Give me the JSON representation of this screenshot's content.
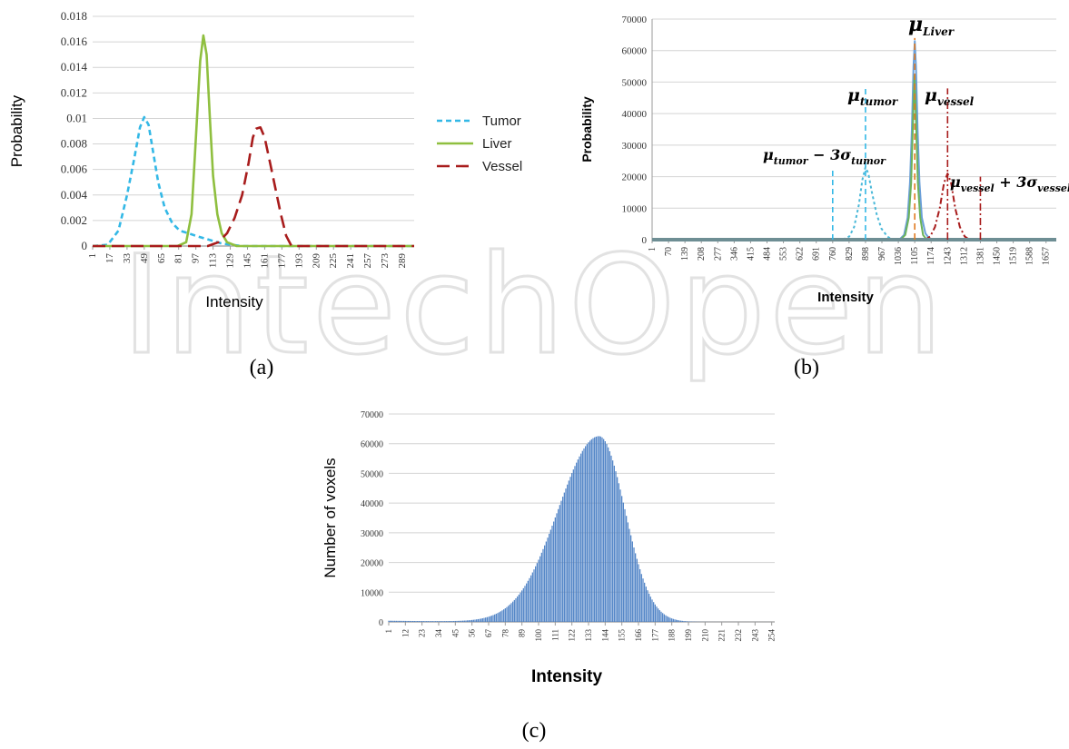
{
  "watermark": {
    "text": "IntechOpen",
    "color": "#e2e2e2"
  },
  "panel_labels": [
    "(a)",
    "(b)",
    "(c)"
  ],
  "chart_data": [
    {
      "id": "a",
      "type": "line",
      "title": "",
      "xlabel": "Intensity",
      "ylabel": "Probability",
      "xlim": [
        1,
        300
      ],
      "ylim": [
        0,
        0.018
      ],
      "y_ticks": [
        "0",
        "0.002",
        "0.004",
        "0.006",
        "0.008",
        "0.01",
        "0.012",
        "0.014",
        "0.016",
        "0.018"
      ],
      "x_ticks": [
        "1",
        "17",
        "33",
        "49",
        "65",
        "81",
        "97",
        "113",
        "129",
        "145",
        "161",
        "177",
        "193",
        "209",
        "225",
        "241",
        "257",
        "273",
        "289"
      ],
      "grid": "horizontal",
      "legend": "right",
      "series": [
        {
          "name": "Tumor",
          "color": "#33b8e6",
          "dash": "6,4",
          "x": [
            1,
            15,
            25,
            33,
            40,
            45,
            49,
            53,
            57,
            62,
            68,
            75,
            82,
            90,
            97,
            105,
            113,
            121,
            130,
            140,
            160,
            300
          ],
          "y": [
            0,
            0.0001,
            0.0012,
            0.004,
            0.007,
            0.0093,
            0.0101,
            0.0095,
            0.0075,
            0.005,
            0.003,
            0.0018,
            0.0012,
            0.001,
            0.0008,
            0.0006,
            0.0004,
            0.0002,
            0.0001,
            0,
            0,
            0
          ]
        },
        {
          "name": "Liver",
          "color": "#8fbf3f",
          "dash": "",
          "x": [
            1,
            80,
            88,
            93,
            97,
            101,
            104,
            107,
            110,
            113,
            117,
            121,
            126,
            135,
            300
          ],
          "y": [
            0,
            0,
            0.0003,
            0.0025,
            0.0085,
            0.0145,
            0.0165,
            0.015,
            0.01,
            0.0055,
            0.0025,
            0.001,
            0.0003,
            0,
            0
          ]
        },
        {
          "name": "Vessel",
          "color": "#a81c1c",
          "dash": "14,7",
          "x": [
            1,
            108,
            118,
            126,
            133,
            140,
            146,
            150,
            153,
            157,
            161,
            166,
            171,
            176,
            181,
            186,
            300
          ],
          "y": [
            0,
            0,
            0.0003,
            0.001,
            0.0022,
            0.004,
            0.0065,
            0.0085,
            0.0092,
            0.0093,
            0.0085,
            0.0065,
            0.0045,
            0.0025,
            0.0008,
            0,
            0
          ]
        }
      ]
    },
    {
      "id": "b",
      "type": "line",
      "title": "",
      "xlabel": "Intensity",
      "ylabel": "Probability",
      "xlim": [
        1,
        1700
      ],
      "ylim": [
        0,
        70000
      ],
      "y_ticks": [
        "0",
        "10000",
        "20000",
        "30000",
        "40000",
        "50000",
        "60000",
        "70000"
      ],
      "x_ticks": [
        "1",
        "70",
        "139",
        "208",
        "277",
        "346",
        "415",
        "484",
        "553",
        "622",
        "691",
        "760",
        "829",
        "898",
        "967",
        "1036",
        "1105",
        "1174",
        "1243",
        "1312",
        "1381",
        "1450",
        "1519",
        "1588",
        "1657"
      ],
      "grid": "horizontal",
      "series": [
        {
          "color": "#4ab8d8",
          "dash": "3,3",
          "x": [
            1,
            800,
            830,
            850,
            870,
            885,
            898,
            910,
            925,
            945,
            965,
            990,
            1010,
            1700
          ],
          "y": [
            0,
            0,
            1000,
            4000,
            11000,
            19000,
            23000,
            21000,
            15000,
            8000,
            3500,
            1000,
            0,
            0
          ]
        },
        {
          "color": "#6a9fd8",
          "dash": "",
          "x": [
            1,
            1040,
            1060,
            1075,
            1085,
            1093,
            1100,
            1105,
            1110,
            1117,
            1125,
            1135,
            1150,
            1170,
            1700
          ],
          "y": [
            0,
            0,
            1500,
            7000,
            18000,
            35000,
            55000,
            63000,
            55000,
            35000,
            18000,
            7000,
            2000,
            0,
            0
          ]
        },
        {
          "color": "#6cb35a",
          "dash": "",
          "x": [
            1,
            1045,
            1065,
            1080,
            1090,
            1098,
            1104,
            1110,
            1118,
            1128,
            1140,
            1155,
            1700
          ],
          "y": [
            0,
            0,
            1500,
            7000,
            18000,
            38000,
            52000,
            38000,
            18000,
            7000,
            1500,
            0,
            0
          ]
        },
        {
          "color": "#a81c1c",
          "dash": "7,3,2,3",
          "x": [
            1,
            1150,
            1170,
            1190,
            1210,
            1228,
            1243,
            1258,
            1275,
            1295,
            1315,
            1335,
            1700
          ],
          "y": [
            0,
            0,
            1000,
            4000,
            10000,
            18000,
            21000,
            18000,
            10000,
            4000,
            1000,
            0,
            0
          ]
        },
        {
          "color": "#6e8e94",
          "dash": "",
          "x": [
            1,
            1700
          ],
          "y": [
            0,
            0
          ]
        }
      ],
      "vlines": [
        {
          "x": 760,
          "y": 22000,
          "color": "#33b8e6",
          "dash": "6,4"
        },
        {
          "x": 898,
          "y": 48000,
          "color": "#33b8e6",
          "dash": "6,4"
        },
        {
          "x": 1105,
          "y": 64000,
          "color": "#e07a20",
          "dash": "7,4"
        },
        {
          "x": 1243,
          "y": 48000,
          "color": "#a81c1c",
          "dash": "8,3,2,3"
        },
        {
          "x": 1381,
          "y": 20000,
          "color": "#a81c1c",
          "dash": "8,3,2,3"
        }
      ],
      "annotations": [
        {
          "base": "μ",
          "sub": "Liver"
        },
        {
          "base": "μ",
          "sub": "tumor"
        },
        {
          "base": "μ",
          "sub": "vessel"
        },
        {
          "base": "μ",
          "sub": "tumor",
          "rest": " − 3σ",
          "sub2": "tumor"
        },
        {
          "base": "μ",
          "sub": "vessel",
          "rest": " + 3σ",
          "sub2": "vessel"
        }
      ]
    },
    {
      "id": "c",
      "type": "bar",
      "title": "",
      "xlabel": "Intensity",
      "ylabel": "Number of voxels",
      "xlim": [
        1,
        256
      ],
      "ylim": [
        0,
        70000
      ],
      "y_ticks": [
        "0",
        "10000",
        "20000",
        "30000",
        "40000",
        "50000",
        "60000",
        "70000"
      ],
      "x_ticks": [
        "1",
        "12",
        "23",
        "34",
        "45",
        "56",
        "67",
        "78",
        "89",
        "100",
        "111",
        "122",
        "133",
        "144",
        "155",
        "166",
        "177",
        "188",
        "199",
        "210",
        "221",
        "232",
        "243",
        "254"
      ],
      "grid": "horizontal",
      "color": "#4a7fc4",
      "peak_x": 140,
      "peak_value": 62500,
      "sigma_left": 27,
      "sigma_right": 17
    }
  ]
}
